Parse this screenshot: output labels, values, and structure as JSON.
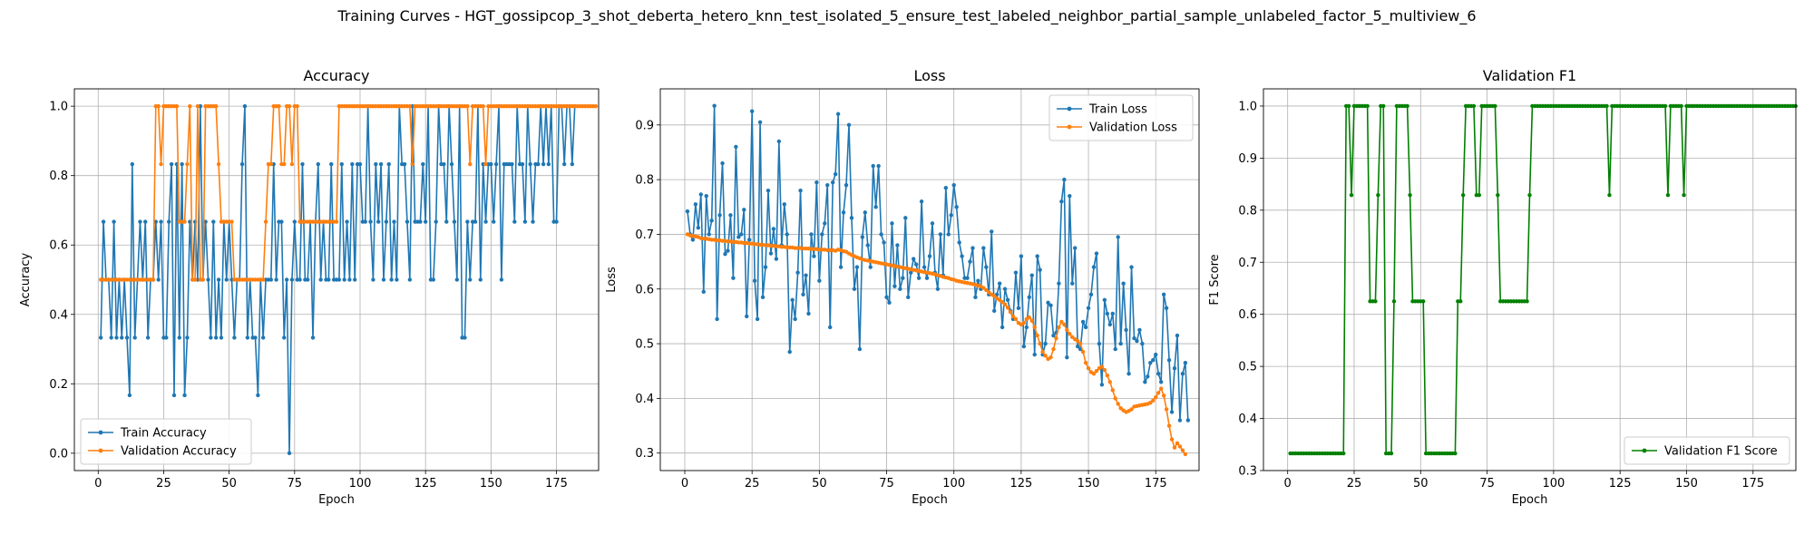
{
  "suptitle": "Training Curves - HGT_gossipcop_3_shot_deberta_hetero_knn_test_isolated_5_ensure_test_labeled_neighbor_partial_sample_unlabeled_factor_5_multiview_6",
  "colors": {
    "blue": "#1f77b4",
    "orange": "#ff7f0e",
    "green": "#008000",
    "grid": "#b0b0b0"
  },
  "chart_data": [
    {
      "type": "line",
      "title": "Accuracy",
      "xlabel": "Epoch",
      "ylabel": "Accuracy",
      "xlim": [
        -9.1,
        191.1
      ],
      "ylim": [
        -0.05,
        1.05
      ],
      "xticks": [
        0,
        25,
        50,
        75,
        100,
        125,
        150,
        175
      ],
      "yticks": [
        0.0,
        0.2,
        0.4,
        0.6,
        0.8,
        1.0
      ],
      "ytick_labels": [
        "0.0",
        "0.2",
        "0.4",
        "0.6",
        "0.8",
        "1.0"
      ],
      "grid": true,
      "legend_loc": "lower-left",
      "series": [
        {
          "name": "Train Accuracy",
          "color": "#1f77b4",
          "values": [
            0.333,
            0.667,
            0.5,
            0.5,
            0.333,
            0.667,
            0.333,
            0.5,
            0.333,
            0.5,
            0.333,
            0.167,
            0.833,
            0.333,
            0.5,
            0.667,
            0.5,
            0.667,
            0.333,
            0.5,
            0.5,
            0.667,
            0.5,
            0.667,
            0.333,
            0.333,
            0.667,
            0.833,
            0.167,
            0.833,
            0.333,
            0.833,
            0.167,
            0.333,
            0.667,
            0.5,
            0.667,
            0.5,
            1.0,
            0.5,
            0.667,
            0.5,
            0.333,
            0.667,
            0.333,
            0.5,
            0.333,
            0.667,
            0.5,
            0.667,
            0.5,
            0.333,
            0.5,
            0.5,
            0.833,
            1.0,
            0.333,
            0.5,
            0.333,
            0.333,
            0.167,
            0.5,
            0.333,
            0.5,
            0.5,
            0.5,
            0.833,
            0.5,
            0.667,
            0.667,
            0.333,
            0.5,
            0.0,
            0.5,
            0.667,
            0.5,
            0.5,
            0.833,
            0.5,
            0.5,
            0.667,
            0.333,
            0.667,
            0.833,
            0.5,
            0.667,
            0.5,
            0.5,
            0.833,
            0.5,
            0.5,
            0.5,
            0.833,
            0.5,
            0.667,
            0.5,
            0.833,
            0.5,
            0.833,
            0.833,
            0.667,
            0.667,
            1.0,
            0.667,
            0.5,
            0.833,
            0.667,
            0.833,
            0.5,
            0.667,
            0.833,
            0.5,
            0.667,
            0.5,
            1.0,
            0.833,
            0.833,
            0.667,
            0.5,
            1.0,
            0.667,
            0.667,
            0.667,
            0.833,
            0.667,
            1.0,
            0.5,
            0.5,
            0.667,
            1.0,
            0.833,
            0.833,
            0.667,
            1.0,
            0.833,
            0.667,
            0.5,
            1.0,
            0.333,
            0.333,
            0.667,
            0.5,
            0.667,
            0.667,
            1.0,
            0.5,
            0.833,
            0.667,
            0.833,
            0.833,
            0.667,
            0.833,
            1.0,
            0.5,
            0.833,
            0.833,
            0.833,
            0.833,
            0.667,
            1.0,
            0.833,
            0.833,
            0.667,
            1.0,
            0.833,
            0.667,
            0.833,
            0.833,
            1.0,
            0.833,
            1.0,
            0.833,
            1.0,
            0.667,
            0.667,
            1.0,
            1.0,
            0.833,
            1.0,
            1.0,
            0.833,
            1.0
          ]
        },
        {
          "name": "Validation Accuracy",
          "color": "#ff7f0e",
          "values": [
            0.5,
            0.5,
            0.5,
            0.5,
            0.5,
            0.5,
            0.5,
            0.5,
            0.5,
            0.5,
            0.5,
            0.5,
            0.5,
            0.5,
            0.5,
            0.5,
            0.5,
            0.5,
            0.5,
            0.5,
            0.5,
            1.0,
            1.0,
            0.833,
            1.0,
            1.0,
            1.0,
            1.0,
            1.0,
            1.0,
            0.667,
            0.667,
            0.667,
            0.833,
            1.0,
            0.5,
            0.5,
            1.0,
            0.5,
            0.5,
            1.0,
            1.0,
            1.0,
            1.0,
            1.0,
            0.833,
            0.667,
            0.667,
            0.667,
            0.667,
            0.667,
            0.5,
            0.5,
            0.5,
            0.5,
            0.5,
            0.5,
            0.5,
            0.5,
            0.5,
            0.5,
            0.5,
            0.5,
            0.667,
            0.833,
            0.833,
            1.0,
            1.0,
            1.0,
            0.833,
            0.833,
            1.0,
            1.0,
            0.833,
            1.0,
            1.0,
            0.667,
            0.667,
            0.667,
            0.667,
            0.667,
            0.667,
            0.667,
            0.667,
            0.667,
            0.667,
            0.667,
            0.667,
            0.667,
            0.667,
            0.667,
            1.0,
            1.0,
            1.0,
            1.0,
            1.0,
            1.0,
            1.0,
            1.0,
            1.0,
            1.0,
            1.0,
            1.0,
            1.0,
            1.0,
            1.0,
            1.0,
            1.0,
            1.0,
            1.0,
            1.0,
            1.0,
            1.0,
            1.0,
            1.0,
            1.0,
            1.0,
            1.0,
            1.0,
            0.833,
            1.0,
            1.0,
            1.0,
            1.0,
            1.0,
            1.0,
            1.0,
            1.0,
            1.0,
            1.0,
            1.0,
            1.0,
            1.0,
            1.0,
            1.0,
            1.0,
            1.0,
            1.0,
            1.0,
            1.0,
            1.0,
            0.833,
            1.0,
            1.0,
            1.0,
            1.0,
            1.0,
            0.833,
            1.0,
            1.0,
            1.0,
            1.0,
            1.0,
            1.0,
            1.0,
            1.0,
            1.0,
            1.0,
            1.0,
            1.0,
            1.0,
            1.0,
            1.0,
            1.0,
            1.0,
            1.0,
            1.0,
            1.0,
            1.0,
            1.0,
            1.0,
            1.0,
            1.0,
            1.0,
            1.0,
            1.0,
            1.0,
            1.0,
            1.0,
            1.0,
            1.0,
            1.0,
            1.0,
            1.0,
            1.0,
            1.0,
            1.0,
            1.0,
            1.0,
            1.0
          ]
        }
      ]
    },
    {
      "type": "line",
      "title": "Loss",
      "xlabel": "Epoch",
      "ylabel": "Loss",
      "xlim": [
        -9.1,
        191.1
      ],
      "ylim": [
        0.268,
        0.966
      ],
      "xticks": [
        0,
        25,
        50,
        75,
        100,
        125,
        150,
        175
      ],
      "yticks": [
        0.3,
        0.4,
        0.5,
        0.6,
        0.7,
        0.8,
        0.9
      ],
      "ytick_labels": [
        "0.3",
        "0.4",
        "0.5",
        "0.6",
        "0.7",
        "0.8",
        "0.9"
      ],
      "grid": true,
      "legend_loc": "upper-right",
      "series": [
        {
          "name": "Train Loss",
          "color": "#1f77b4",
          "values": [
            0.742,
            0.7,
            0.69,
            0.755,
            0.712,
            0.773,
            0.595,
            0.77,
            0.7,
            0.725,
            0.935,
            0.545,
            0.735,
            0.83,
            0.664,
            0.67,
            0.735,
            0.62,
            0.86,
            0.695,
            0.7,
            0.745,
            0.55,
            0.69,
            0.925,
            0.615,
            0.545,
            0.905,
            0.585,
            0.64,
            0.78,
            0.665,
            0.71,
            0.655,
            0.87,
            0.68,
            0.755,
            0.7,
            0.485,
            0.58,
            0.545,
            0.63,
            0.78,
            0.59,
            0.625,
            0.555,
            0.7,
            0.66,
            0.795,
            0.615,
            0.7,
            0.72,
            0.79,
            0.53,
            0.795,
            0.81,
            0.92,
            0.64,
            0.74,
            0.79,
            0.9,
            0.73,
            0.6,
            0.64,
            0.49,
            0.695,
            0.74,
            0.68,
            0.64,
            0.825,
            0.75,
            0.825,
            0.7,
            0.685,
            0.585,
            0.575,
            0.72,
            0.605,
            0.68,
            0.6,
            0.62,
            0.73,
            0.585,
            0.63,
            0.655,
            0.645,
            0.62,
            0.76,
            0.64,
            0.62,
            0.66,
            0.72,
            0.63,
            0.6,
            0.7,
            0.625,
            0.785,
            0.7,
            0.735,
            0.79,
            0.75,
            0.685,
            0.66,
            0.62,
            0.62,
            0.65,
            0.675,
            0.585,
            0.615,
            0.6,
            0.675,
            0.64,
            0.59,
            0.705,
            0.56,
            0.59,
            0.61,
            0.53,
            0.6,
            0.58,
            0.56,
            0.545,
            0.63,
            0.565,
            0.66,
            0.495,
            0.53,
            0.585,
            0.625,
            0.48,
            0.66,
            0.635,
            0.48,
            0.5,
            0.575,
            0.57,
            0.515,
            0.52,
            0.61,
            0.76,
            0.8,
            0.475,
            0.77,
            0.61,
            0.675,
            0.495,
            0.49,
            0.54,
            0.53,
            0.565,
            0.59,
            0.64,
            0.665,
            0.5,
            0.425,
            0.58,
            0.555,
            0.535,
            0.555,
            0.49,
            0.695,
            0.5,
            0.61,
            0.525,
            0.445,
            0.64,
            0.51,
            0.505,
            0.525,
            0.5,
            0.43,
            0.44,
            0.465,
            0.47,
            0.48,
            0.445,
            0.43,
            0.59,
            0.565,
            0.47,
            0.375,
            0.455,
            0.515,
            0.36,
            0.445,
            0.465,
            0.36
          ]
        },
        {
          "name": "Validation Loss",
          "color": "#ff7f0e",
          "values": [
            0.7,
            0.698,
            0.697,
            0.696,
            0.695,
            0.693,
            0.692,
            0.692,
            0.691,
            0.69,
            0.69,
            0.689,
            0.689,
            0.688,
            0.688,
            0.687,
            0.687,
            0.686,
            0.686,
            0.685,
            0.685,
            0.684,
            0.684,
            0.683,
            0.683,
            0.682,
            0.682,
            0.681,
            0.681,
            0.68,
            0.68,
            0.679,
            0.679,
            0.678,
            0.678,
            0.677,
            0.677,
            0.676,
            0.676,
            0.676,
            0.675,
            0.675,
            0.675,
            0.674,
            0.674,
            0.674,
            0.673,
            0.673,
            0.673,
            0.672,
            0.672,
            0.672,
            0.671,
            0.671,
            0.671,
            0.67,
            0.672,
            0.671,
            0.669,
            0.668,
            0.665,
            0.662,
            0.66,
            0.658,
            0.656,
            0.654,
            0.653,
            0.652,
            0.651,
            0.65,
            0.649,
            0.648,
            0.647,
            0.646,
            0.645,
            0.644,
            0.643,
            0.642,
            0.641,
            0.64,
            0.639,
            0.638,
            0.637,
            0.636,
            0.635,
            0.634,
            0.633,
            0.632,
            0.631,
            0.63,
            0.629,
            0.628,
            0.627,
            0.625,
            0.624,
            0.622,
            0.621,
            0.62,
            0.618,
            0.617,
            0.615,
            0.614,
            0.613,
            0.612,
            0.611,
            0.61,
            0.609,
            0.608,
            0.606,
            0.605,
            0.602,
            0.598,
            0.594,
            0.59,
            0.587,
            0.583,
            0.58,
            0.576,
            0.572,
            0.566,
            0.558,
            0.55,
            0.545,
            0.538,
            0.535,
            0.538,
            0.545,
            0.548,
            0.542,
            0.53,
            0.515,
            0.5,
            0.485,
            0.478,
            0.472,
            0.475,
            0.49,
            0.51,
            0.53,
            0.54,
            0.535,
            0.525,
            0.518,
            0.512,
            0.508,
            0.505,
            0.5,
            0.485,
            0.465,
            0.455,
            0.448,
            0.445,
            0.45,
            0.455,
            0.458,
            0.452,
            0.442,
            0.43,
            0.415,
            0.4,
            0.39,
            0.382,
            0.378,
            0.375,
            0.377,
            0.38,
            0.385,
            0.386,
            0.387,
            0.388,
            0.389,
            0.39,
            0.392,
            0.396,
            0.402,
            0.41,
            0.418,
            0.405,
            0.38,
            0.35,
            0.325,
            0.31,
            0.318,
            0.312,
            0.305,
            0.298
          ]
        }
      ]
    },
    {
      "type": "line",
      "title": "Validation F1",
      "xlabel": "Epoch",
      "ylabel": "F1 Score",
      "xlim": [
        -9.1,
        191.1
      ],
      "ylim": [
        0.3,
        1.033
      ],
      "xticks": [
        0,
        25,
        50,
        75,
        100,
        125,
        150,
        175
      ],
      "yticks": [
        0.3,
        0.4,
        0.5,
        0.6,
        0.7,
        0.8,
        0.9,
        1.0
      ],
      "ytick_labels": [
        "0.3",
        "0.4",
        "0.5",
        "0.6",
        "0.7",
        "0.8",
        "0.9",
        "1.0"
      ],
      "grid": true,
      "legend_loc": "lower-right",
      "series": [
        {
          "name": "Validation F1 Score",
          "color": "#008000",
          "values": [
            0.333,
            0.333,
            0.333,
            0.333,
            0.333,
            0.333,
            0.333,
            0.333,
            0.333,
            0.333,
            0.333,
            0.333,
            0.333,
            0.333,
            0.333,
            0.333,
            0.333,
            0.333,
            0.333,
            0.333,
            0.333,
            1.0,
            1.0,
            0.829,
            1.0,
            1.0,
            1.0,
            1.0,
            1.0,
            1.0,
            0.625,
            0.625,
            0.625,
            0.829,
            1.0,
            1.0,
            0.333,
            0.333,
            0.333,
            0.625,
            1.0,
            1.0,
            1.0,
            1.0,
            1.0,
            0.829,
            0.625,
            0.625,
            0.625,
            0.625,
            0.625,
            0.333,
            0.333,
            0.333,
            0.333,
            0.333,
            0.333,
            0.333,
            0.333,
            0.333,
            0.333,
            0.333,
            0.333,
            0.625,
            0.625,
            0.829,
            1.0,
            1.0,
            1.0,
            1.0,
            0.829,
            0.829,
            1.0,
            1.0,
            1.0,
            1.0,
            1.0,
            1.0,
            0.829,
            0.625,
            0.625,
            0.625,
            0.625,
            0.625,
            0.625,
            0.625,
            0.625,
            0.625,
            0.625,
            0.625,
            0.829,
            1.0,
            1.0,
            1.0,
            1.0,
            1.0,
            1.0,
            1.0,
            1.0,
            1.0,
            1.0,
            1.0,
            1.0,
            1.0,
            1.0,
            1.0,
            1.0,
            1.0,
            1.0,
            1.0,
            1.0,
            1.0,
            1.0,
            1.0,
            1.0,
            1.0,
            1.0,
            1.0,
            1.0,
            1.0,
            0.829,
            1.0,
            1.0,
            1.0,
            1.0,
            1.0,
            1.0,
            1.0,
            1.0,
            1.0,
            1.0,
            1.0,
            1.0,
            1.0,
            1.0,
            1.0,
            1.0,
            1.0,
            1.0,
            1.0,
            1.0,
            1.0,
            0.829,
            1.0,
            1.0,
            1.0,
            1.0,
            1.0,
            0.829,
            1.0,
            1.0,
            1.0,
            1.0,
            1.0,
            1.0,
            1.0,
            1.0,
            1.0,
            1.0,
            1.0,
            1.0,
            1.0,
            1.0,
            1.0,
            1.0,
            1.0,
            1.0,
            1.0,
            1.0,
            1.0,
            1.0,
            1.0,
            1.0,
            1.0,
            1.0,
            1.0,
            1.0,
            1.0,
            1.0,
            1.0,
            1.0,
            1.0,
            1.0,
            1.0,
            1.0,
            1.0,
            1.0,
            1.0,
            1.0,
            1.0,
            1.0
          ]
        }
      ]
    }
  ]
}
